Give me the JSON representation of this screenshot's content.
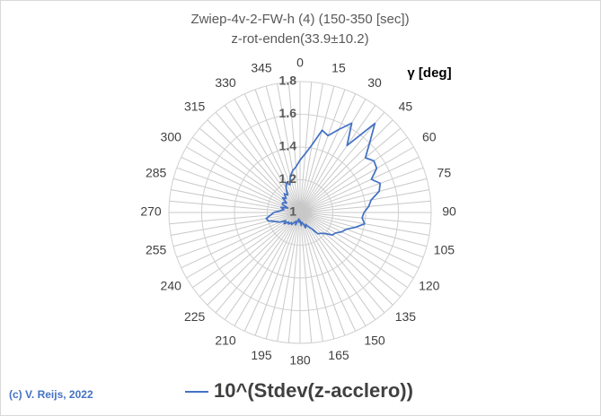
{
  "chart_data": {
    "type": "radar",
    "title": "Zwiep-4v-2-FW-h (4) (150-350 [sec])",
    "subtitle": "z-rot-enden(33.9±10.2)",
    "axis_label": "γ [deg]",
    "annotation": "(c) V. Reijs, 2022",
    "categories": [
      "0",
      null,
      null,
      "15",
      null,
      null,
      "30",
      null,
      null,
      "45",
      null,
      null,
      "60",
      null,
      null,
      "75",
      null,
      null,
      "90",
      null,
      null,
      "105",
      null,
      null,
      "120",
      null,
      null,
      "135",
      null,
      null,
      "150",
      null,
      null,
      "165",
      null,
      null,
      "180",
      null,
      null,
      "195",
      null,
      null,
      "210",
      null,
      null,
      "225",
      null,
      null,
      "240",
      null,
      null,
      "255",
      null,
      null,
      "270",
      null,
      null,
      "285",
      null,
      null,
      "300",
      null,
      null,
      "315",
      null,
      null,
      "330",
      null,
      null,
      "345",
      null,
      null
    ],
    "series": [
      {
        "name": "10^(Stdev(z-acclero))",
        "color": "#4472c4",
        "values": [
          1.32,
          1.36,
          1.42,
          1.52,
          1.5,
          1.56,
          1.63,
          1.5,
          1.71,
          1.6,
          1.52,
          1.55,
          1.54,
          1.48,
          1.52,
          1.5,
          1.44,
          1.42,
          1.39,
          1.38,
          1.4,
          1.35,
          1.3,
          1.28,
          1.25,
          1.24,
          1.2,
          1.18,
          1.17,
          1.12,
          1.1,
          1.08,
          1.1,
          1.07,
          1.06,
          1.08,
          1.05,
          1.06,
          1.04,
          1.05,
          1.08,
          1.06,
          1.07,
          1.09,
          1.08,
          1.1,
          1.09,
          1.12,
          1.1,
          1.14,
          1.16,
          1.2,
          1.21,
          1.18,
          1.16,
          1.12,
          1.1,
          1.12,
          1.08,
          1.12,
          1.12,
          1.1,
          1.14,
          1.12,
          1.15,
          1.13,
          1.17,
          1.2,
          1.18,
          1.23,
          1.26,
          1.28
        ]
      }
    ],
    "ylim": [
      1,
      1.8
    ],
    "yticks": [
      1,
      1.2,
      1.4,
      1.6,
      1.8
    ],
    "grid": true
  }
}
